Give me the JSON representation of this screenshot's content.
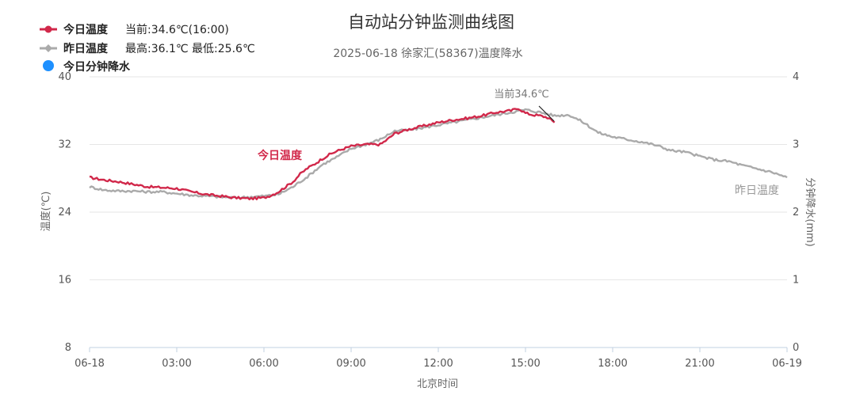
{
  "header": {
    "title": "自动站分钟监测曲线图",
    "subtitle": "2025-06-18 徐家汇(58367)温度降水"
  },
  "legend": {
    "today_name": "今日温度",
    "today_info": "当前:34.6℃(16:00)",
    "yesterday_name": "昨日温度",
    "yesterday_info": "最高:36.1℃ 最低:25.6℃",
    "precip_name": "今日分钟降水"
  },
  "colors": {
    "today": "#d1284a",
    "yesterday": "#aaaaaa",
    "precip": "#1e90ff",
    "grid": "#e6e6e6"
  },
  "annotations": {
    "current_label": "当前34.6℃",
    "today_series_label": "今日温度",
    "yesterday_series_label": "昨日温度"
  },
  "chart_data": {
    "type": "line",
    "title": "自动站分钟监测曲线图",
    "subtitle": "2025-06-18 徐家汇(58367)温度降水",
    "xlabel": "北京时间",
    "ylabel": "温度(℃)",
    "y2label": "分钟降水(mm)",
    "xlim": [
      0,
      24
    ],
    "ylim": [
      8,
      40
    ],
    "y2lim": [
      0,
      4
    ],
    "x_ticks": [
      "06-18",
      "03:00",
      "06:00",
      "09:00",
      "12:00",
      "15:00",
      "18:00",
      "21:00",
      "06-19"
    ],
    "y_ticks": [
      8,
      16,
      24,
      32,
      40
    ],
    "y2_ticks": [
      0,
      1,
      2,
      3,
      4
    ],
    "grid": true,
    "legend_position": "top-left",
    "series": [
      {
        "name": "今日温度",
        "x_hours": [
          0,
          0.5,
          1,
          1.5,
          2,
          2.5,
          3,
          3.5,
          4,
          4.5,
          5,
          5.5,
          6,
          6.25,
          6.5,
          6.75,
          7,
          7.25,
          7.5,
          7.75,
          8,
          8.25,
          8.5,
          8.75,
          9,
          9.5,
          10,
          10.25,
          10.5,
          11,
          11.5,
          12,
          12.5,
          13,
          13.5,
          14,
          14.5,
          14.75,
          15,
          15.25,
          15.5,
          15.75,
          16
        ],
        "values": [
          28.1,
          27.8,
          27.6,
          27.3,
          27.0,
          26.9,
          26.8,
          26.4,
          26.1,
          25.9,
          25.7,
          25.6,
          25.7,
          26.0,
          26.4,
          27.0,
          27.6,
          28.5,
          29.2,
          29.7,
          30.3,
          30.8,
          31.2,
          31.5,
          31.8,
          32.0,
          32.0,
          32.6,
          33.3,
          33.8,
          34.2,
          34.6,
          34.9,
          35.1,
          35.4,
          35.8,
          36.0,
          36.3,
          35.7,
          35.5,
          35.4,
          35.2,
          34.6
        ]
      },
      {
        "name": "昨日温度",
        "x_hours": [
          0,
          0.5,
          1,
          1.5,
          2,
          2.5,
          3,
          3.5,
          4,
          4.5,
          5,
          5.5,
          6,
          6.5,
          7,
          7.5,
          8,
          8.5,
          9,
          9.5,
          10,
          10.5,
          11,
          11.5,
          12,
          12.5,
          13,
          13.5,
          14,
          14.5,
          15,
          15.5,
          16,
          16.5,
          17,
          17.5,
          18,
          18.5,
          19,
          19.5,
          20,
          20.5,
          21,
          21.5,
          22,
          22.5,
          23,
          23.5,
          24
        ],
        "values": [
          27.0,
          26.6,
          26.5,
          26.5,
          26.4,
          26.4,
          26.2,
          26.0,
          25.9,
          25.8,
          25.7,
          25.8,
          25.9,
          26.1,
          27.0,
          28.2,
          29.6,
          30.5,
          31.5,
          32.0,
          32.6,
          33.6,
          33.7,
          34.0,
          34.3,
          34.6,
          34.9,
          35.2,
          35.5,
          35.8,
          36.1,
          35.8,
          35.4,
          35.5,
          34.6,
          33.4,
          32.9,
          32.6,
          32.3,
          31.9,
          31.3,
          31.1,
          30.6,
          30.2,
          30.0,
          29.5,
          29.1,
          28.7,
          28.1
        ]
      }
    ]
  }
}
